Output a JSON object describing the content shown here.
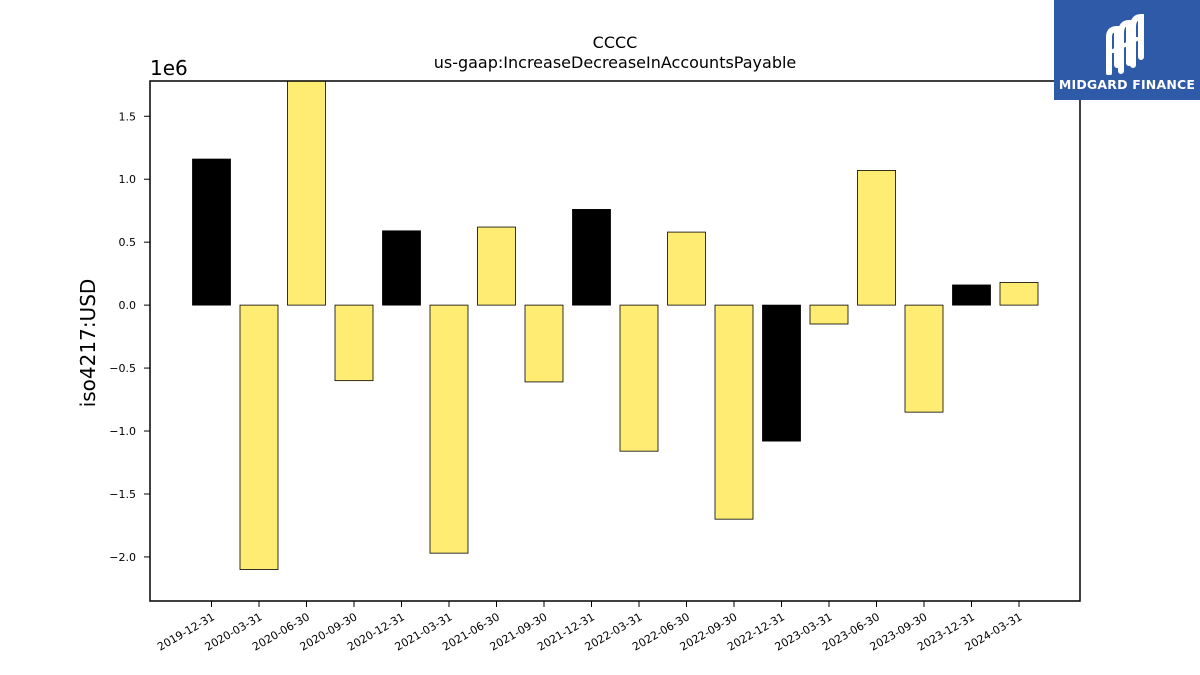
{
  "chart_data": {
    "type": "bar",
    "title": "CCCC",
    "subtitle": "us-gaap:IncreaseDecreaseInAccountsPayable",
    "xlabel": "",
    "ylabel": "iso4217:USD",
    "y_scale_label": "1e6",
    "ylim": [
      -2.35,
      1.78
    ],
    "yticks": [
      -2.0,
      -1.5,
      -1.0,
      -0.5,
      0.0,
      0.5,
      1.0,
      1.5
    ],
    "ytick_labels": [
      "−2.0",
      "−1.5",
      "−1.0",
      "−0.5",
      "0.0",
      "0.5",
      "1.0",
      "1.5"
    ],
    "grid": false,
    "categories": [
      "2019-12-31",
      "2020-03-31",
      "2020-06-30",
      "2020-09-30",
      "2020-12-31",
      "2021-03-31",
      "2021-06-30",
      "2021-09-30",
      "2021-12-31",
      "2022-03-31",
      "2022-06-30",
      "2022-09-30",
      "2022-12-31",
      "2023-03-31",
      "2023-06-30",
      "2023-09-30",
      "2023-12-31",
      "2024-03-31"
    ],
    "values": [
      1.16,
      -2.1,
      1.79,
      -0.6,
      0.59,
      -1.97,
      0.62,
      -0.61,
      0.76,
      -1.16,
      0.58,
      -1.7,
      -1.08,
      -0.15,
      1.07,
      -0.85,
      0.16,
      0.18
    ],
    "bar_colors": [
      "#000000",
      "#ffec73",
      "#ffec73",
      "#ffec73",
      "#000000",
      "#ffec73",
      "#ffec73",
      "#ffec73",
      "#000000",
      "#ffec73",
      "#ffec73",
      "#ffec73",
      "#000000",
      "#ffec73",
      "#ffec73",
      "#ffec73",
      "#000000",
      "#ffec73"
    ]
  },
  "logo": {
    "text": "MIDGARD FINANCE",
    "background": "#2f5aa8"
  }
}
